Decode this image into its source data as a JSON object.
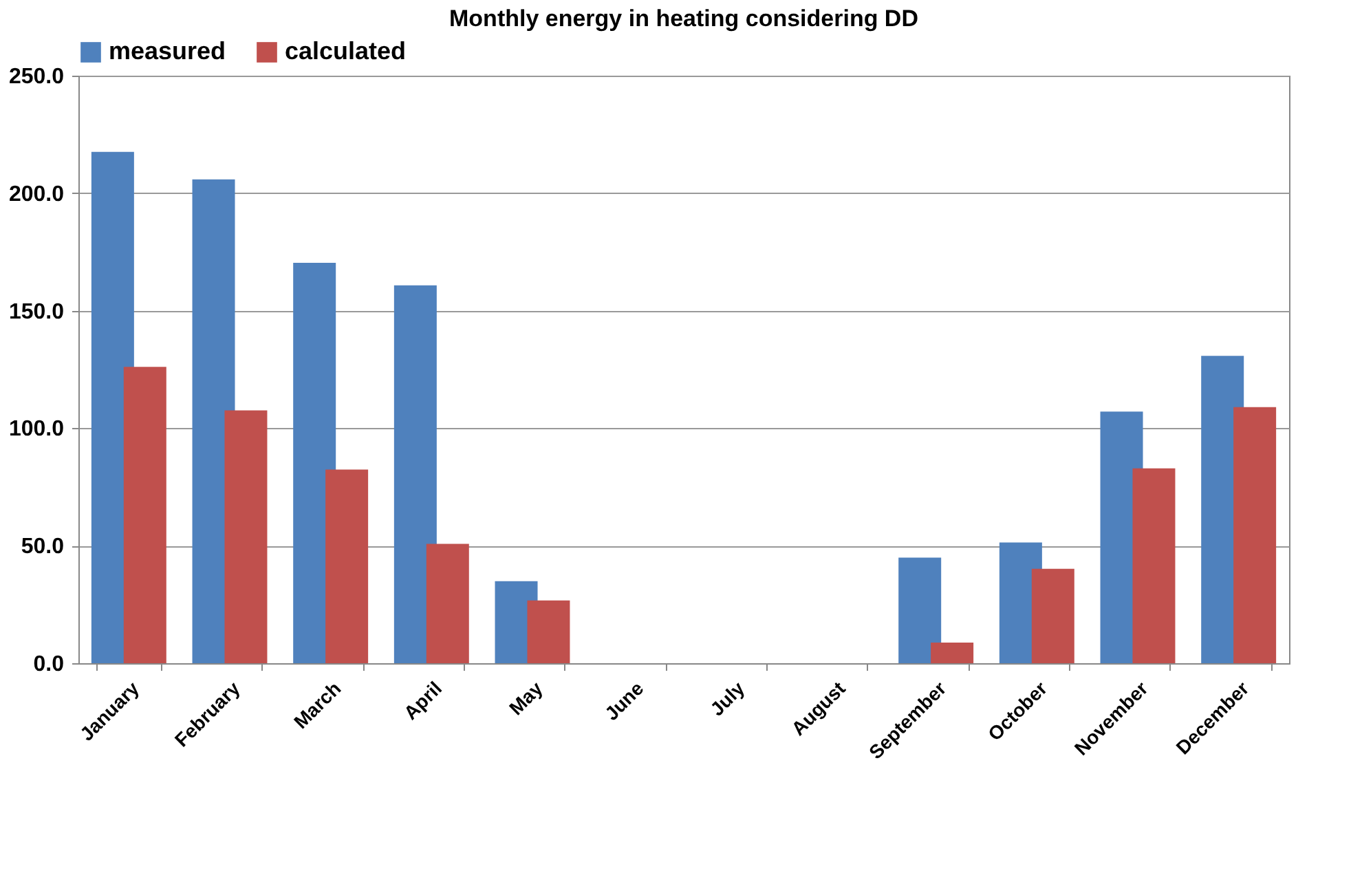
{
  "chart_data": {
    "type": "bar",
    "title": "Monthly energy in heating  considering DD",
    "categories": [
      "January",
      "February",
      "March",
      "April",
      "May",
      "June",
      "July",
      "August",
      "September",
      "October",
      "November",
      "December"
    ],
    "series": [
      {
        "name": "measured",
        "color": "#4f81bd",
        "values": [
          217.6,
          205.9,
          170.4,
          160.8,
          34.9,
          0,
          0,
          0,
          44.9,
          51.4,
          107.1,
          130.8
        ]
      },
      {
        "name": "calculated",
        "color": "#c0504d",
        "values": [
          126.1,
          107.6,
          82.4,
          50.8,
          26.7,
          0,
          0,
          0,
          8.8,
          40.2,
          82.9,
          109.0
        ]
      }
    ],
    "ylim": [
      0,
      250
    ],
    "yticks": [
      {
        "value": 0,
        "label": "0.0"
      },
      {
        "value": 50,
        "label": "50.0"
      },
      {
        "value": 100,
        "label": "100.0"
      },
      {
        "value": 150,
        "label": "150.0"
      },
      {
        "value": 200,
        "label": "200.0"
      },
      {
        "value": 250,
        "label": "250.0"
      }
    ],
    "grid": "y",
    "legend": "top"
  }
}
